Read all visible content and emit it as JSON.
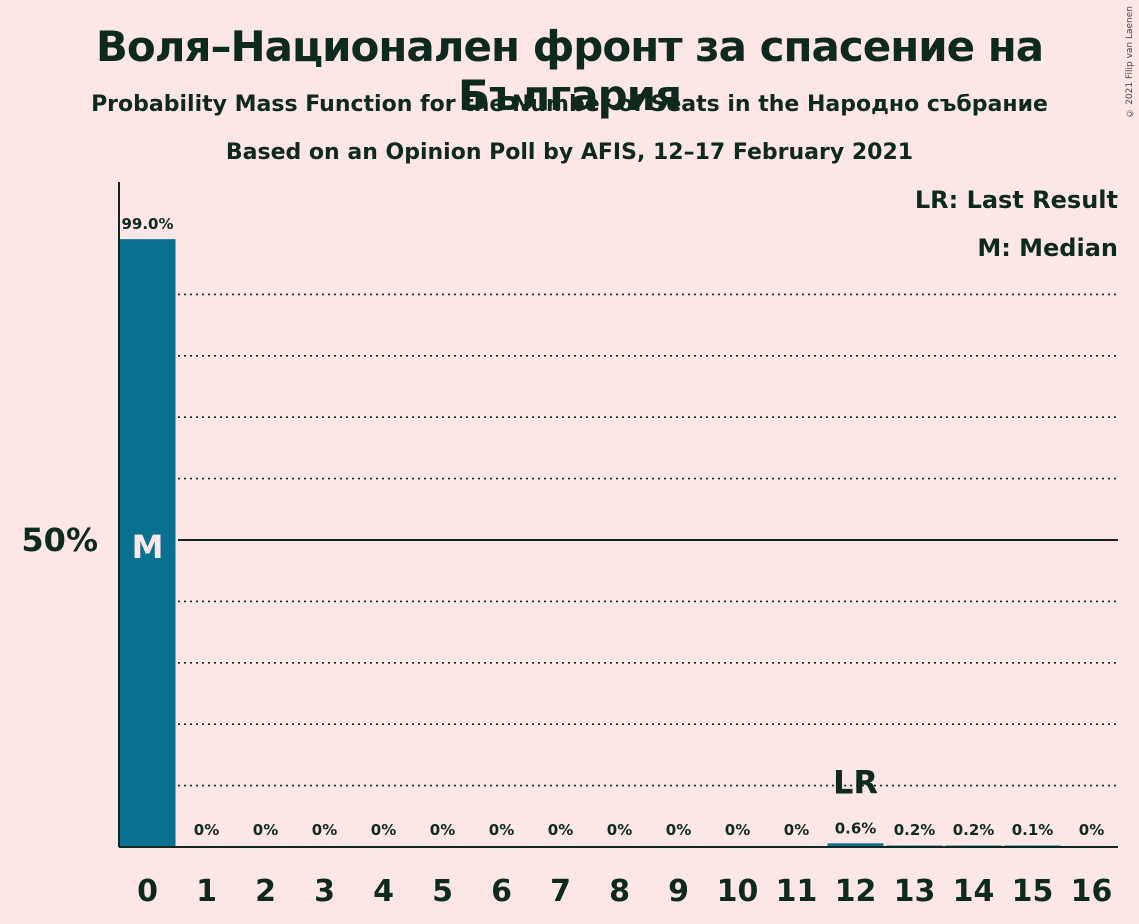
{
  "chart_data": {
    "type": "bar",
    "title": "Воля–Национален фронт за спасение на България",
    "subtitle": "Probability Mass Function for the Number of Seats in the Народно събрание",
    "subtitle2": "Based on an Opinion Poll by AFIS, 12–17 February 2021",
    "categories": [
      "0",
      "1",
      "2",
      "3",
      "4",
      "5",
      "6",
      "7",
      "8",
      "9",
      "10",
      "11",
      "12",
      "13",
      "14",
      "15",
      "16"
    ],
    "values": [
      99.0,
      0,
      0,
      0,
      0,
      0,
      0,
      0,
      0,
      0,
      0,
      0,
      0.6,
      0.2,
      0.2,
      0.1,
      0
    ],
    "data_labels": [
      "99.0%",
      "0%",
      "0%",
      "0%",
      "0%",
      "0%",
      "0%",
      "0%",
      "0%",
      "0%",
      "0%",
      "0%",
      "0.6%",
      "0.2%",
      "0.2%",
      "0.1%",
      "0%"
    ],
    "ylim": [
      0,
      108
    ],
    "ytick_value": 50,
    "ytick_label": "50%",
    "gridlines": [
      10,
      20,
      30,
      40,
      60,
      70,
      80,
      90
    ],
    "median_index": 0,
    "median_label": "M",
    "last_result_index": 12,
    "last_result_label": "LR",
    "legend": {
      "last_result": "LR: Last Result",
      "median": "M: Median"
    },
    "bar_color": "#0a7090",
    "background_color": "#fde6e6",
    "copyright": "© 2021 Filip van Laenen"
  }
}
